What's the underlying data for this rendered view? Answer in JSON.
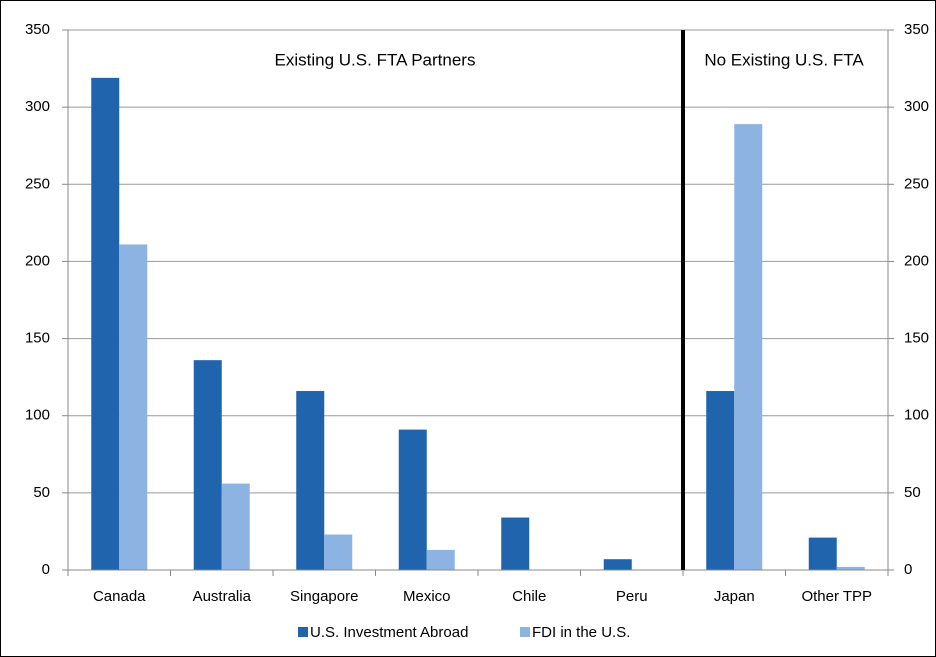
{
  "chart_data": {
    "type": "bar",
    "categories": [
      "Canada",
      "Australia",
      "Singapore",
      "Mexico",
      "Chile",
      "Peru",
      "Japan",
      "Other TPP"
    ],
    "series": [
      {
        "name": "U.S. Investment Abroad",
        "color": "#1f64ad",
        "values": [
          319,
          136,
          116,
          91,
          34,
          7,
          116,
          21
        ]
      },
      {
        "name": "FDI in the U.S.",
        "color": "#8db3e2",
        "values": [
          211,
          56,
          23,
          13,
          0,
          0,
          289,
          2
        ]
      }
    ],
    "annotations": [
      "Existing U.S. FTA Partners",
      "No Existing U.S. FTA"
    ],
    "ylim": [
      0,
      350
    ],
    "yticks": [
      0,
      50,
      100,
      150,
      200,
      250,
      300,
      350
    ],
    "y2lim": [
      0,
      350
    ],
    "y2ticks": [
      0,
      50,
      100,
      150,
      200,
      250,
      300,
      350
    ],
    "grid": true,
    "legend": "bottom"
  }
}
